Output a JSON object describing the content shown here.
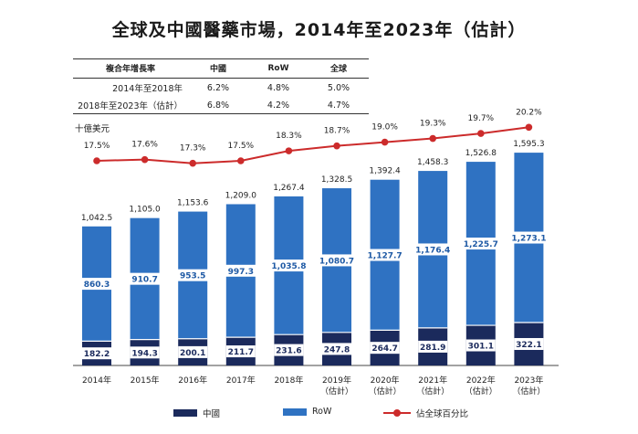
{
  "title": "全球及中國醫藥市場，2014年至2023年（估計）",
  "cagr_table": {
    "headers": [
      "複合年增長率",
      "中國",
      "RoW",
      "全球"
    ],
    "rows": [
      {
        "label": "2014年至2018年",
        "china": "6.2%",
        "row": "4.8%",
        "global": "5.0%"
      },
      {
        "label": "2018年至2023年（估計）",
        "china": "6.8%",
        "row": "4.2%",
        "global": "4.7%"
      }
    ]
  },
  "colors": {
    "china": "#1b2a5c",
    "row": "#2f72c2",
    "line": "#cc2b2b"
  },
  "legend": {
    "china": "中國",
    "row": "RoW",
    "line": "佔全球百分比"
  },
  "chart_data": {
    "type": "bar",
    "stacked": true,
    "unit": "十億美元",
    "categories": [
      [
        "2014年"
      ],
      [
        "2015年"
      ],
      [
        "2016年"
      ],
      [
        "2017年"
      ],
      [
        "2018年"
      ],
      [
        "2019年",
        "（估計）"
      ],
      [
        "2020年",
        "（估計）"
      ],
      [
        "2021年",
        "（估計）"
      ],
      [
        "2022年",
        "（估計）"
      ],
      [
        "2023年",
        "（估計）"
      ]
    ],
    "series": [
      {
        "name": "中國",
        "values": [
          182.2,
          194.3,
          200.1,
          211.7,
          231.6,
          247.8,
          264.7,
          281.9,
          301.1,
          322.1
        ],
        "labels": [
          "182.2",
          "194.3",
          "200.1",
          "211.7",
          "231.6",
          "247.8",
          "264.7",
          "281.9",
          "301.1",
          "322.1"
        ]
      },
      {
        "name": "RoW",
        "values": [
          860.3,
          910.7,
          953.5,
          997.3,
          1035.8,
          1080.7,
          1127.7,
          1176.4,
          1225.7,
          1273.1
        ],
        "labels": [
          "860.3",
          "910.7",
          "953.5",
          "997.3",
          "1,035.8",
          "1,080.7",
          "1,127.7",
          "1,176.4",
          "1,225.7",
          "1,273.1"
        ]
      }
    ],
    "totals": [
      1042.5,
      1105.0,
      1153.6,
      1209.0,
      1267.4,
      1328.5,
      1392.4,
      1458.3,
      1526.8,
      1595.3
    ],
    "total_labels": [
      "1,042.5",
      "1,105.0",
      "1,153.6",
      "1,209.0",
      "1,267.4",
      "1,328.5",
      "1,392.4",
      "1,458.3",
      "1,526.8",
      "1,595.3"
    ],
    "line_series": {
      "name": "佔全球百分比",
      "values": [
        17.5,
        17.6,
        17.3,
        17.5,
        18.3,
        18.7,
        19.0,
        19.3,
        19.7,
        20.2
      ],
      "labels": [
        "17.5%",
        "17.6%",
        "17.3%",
        "17.5%",
        "18.3%",
        "18.7%",
        "19.0%",
        "19.3%",
        "19.7%",
        "20.2%"
      ]
    }
  }
}
